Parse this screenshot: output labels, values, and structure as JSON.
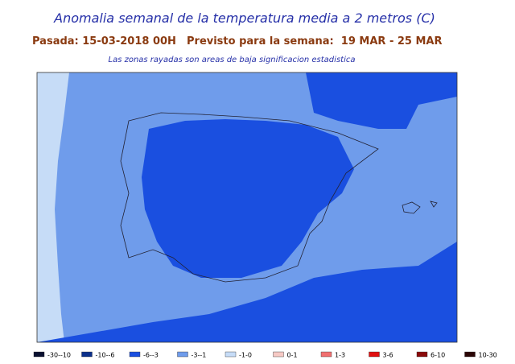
{
  "header": {
    "title": "Anomalia semanal de la temperatura media a 2 metros (C)",
    "run": "Pasada: 15-03-2018 00H",
    "forecast": "Previsto para la semana:  19 MAR - 25 MAR",
    "note": "Las zonas rayadas son areas de baja significacion estadistica"
  },
  "legend": {
    "items": [
      {
        "label": "-30--10",
        "color": "#0a1030"
      },
      {
        "label": "-10--6",
        "color": "#0b2f8a"
      },
      {
        "label": "-6--3",
        "color": "#1a4fe0"
      },
      {
        "label": "-3--1",
        "color": "#6f9ceb"
      },
      {
        "label": "-1-0",
        "color": "#c6dcf7"
      },
      {
        "label": "0-1",
        "color": "#f6c9c4"
      },
      {
        "label": "1-3",
        "color": "#f07070"
      },
      {
        "label": "3-6",
        "color": "#e01010"
      },
      {
        "label": "6-10",
        "color": "#8a0a0a"
      },
      {
        "label": "10-30",
        "color": "#2a0505"
      }
    ]
  }
}
